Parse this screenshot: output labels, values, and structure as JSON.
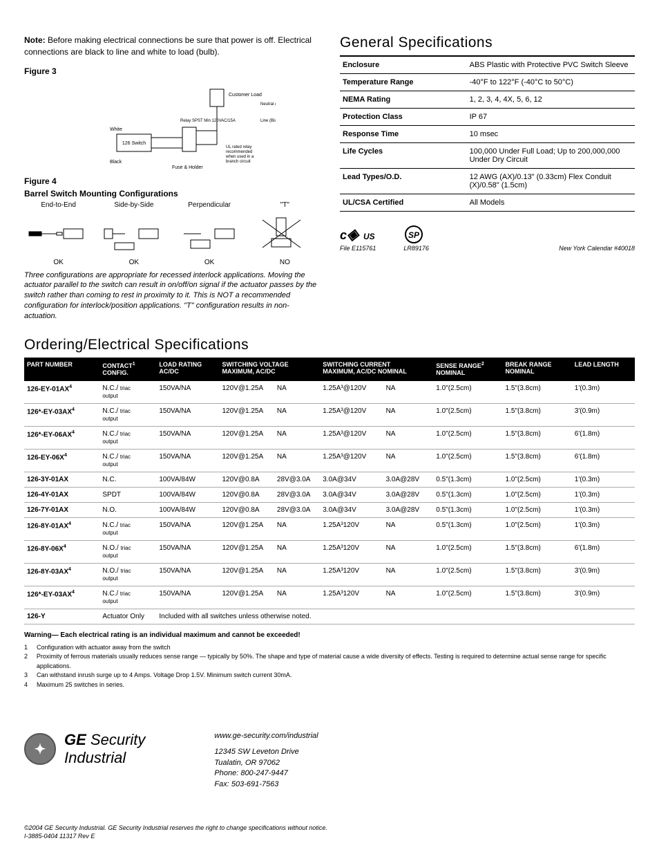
{
  "note_bold": "Note:",
  "note_text": " Before making electrical connections be sure that power is off. Electrical connections are black to line and white to load (bulb).",
  "fig3_label": "Figure 3",
  "fig3_labels": {
    "customer_load": "Customer Load",
    "neutral": "Neutral (White)",
    "line": "Line (Black)",
    "white": "White",
    "black": "Black",
    "switch": "126 Switch",
    "fuse": "Fuse & Holder",
    "relay": "Relay SPST Min 120VAC/15A",
    "ul_note": "UL rated relay recommended when used in a branch circuit"
  },
  "fig4_label": "Figure 4",
  "fig4_sub": "Barrel Switch Mounting Configurations",
  "fig4_cols": [
    "End-to-End",
    "Side-by-Side",
    "Perpendicular",
    "\"T\""
  ],
  "fig4_ok": [
    "OK",
    "OK",
    "OK",
    "NO"
  ],
  "fig4_caption": "Three configurations are appropriate for recessed interlock applications. Moving the actuator parallel to the switch can result in on/off/on signal if the actuator passes by the switch rather than coming to rest in proximity to it. This is NOT a recommended configuration for interlock/position applications. \"T\" configuration results in non-actuation.",
  "gen_spec_title": "General Specifications",
  "gen_spec_rows": [
    {
      "k": "Enclosure",
      "v": "ABS Plastic with Protective PVC Switch Sleeve"
    },
    {
      "k": "Temperature Range",
      "v": "-40°F to 122°F (-40°C to 50°C)"
    },
    {
      "k": "NEMA Rating",
      "v": "1, 2, 3, 4, 4X, 5, 6, 12"
    },
    {
      "k": "Protection Class",
      "v": "IP 67"
    },
    {
      "k": "Response Time",
      "v": "10 msec"
    },
    {
      "k": "Life Cycles",
      "v": "100,000 Under Full Load; Up to 200,000,000 Under Dry Circuit"
    },
    {
      "k": "Lead Types/O.D.",
      "v": "12 AWG (AX)/0.13\" (0.33cm) Flex Conduit (X)/0.58\" (1.5cm)"
    },
    {
      "k": "UL/CSA Certified",
      "v": "All Models"
    }
  ],
  "cert1_file": "File E115761",
  "cert2_file": "LR89176",
  "cert3": "New York Calendar #40018",
  "order_title": "Ordering/Electrical Specifications",
  "order_headers": [
    "PART NUMBER",
    "CONTACT¹ CONFIG.",
    "LOAD RATING AC/DC",
    "SWITCHING VOLTAGE MAXIMUM, AC/DC",
    "",
    "SWITCHING CURRENT MAXIMUM, AC/DC NOMINAL",
    "",
    "SENSE RANGE² NOMINAL",
    "BREAK RANGE NOMINAL",
    "LEAD LENGTH"
  ],
  "order_rows": [
    {
      "pn": "126-EY-01AX",
      "pns": "4",
      "c1": "N.C./",
      "c2": "triac output",
      "lr": "150VA/NA",
      "sv1": "120V@1.25A",
      "sv2": "NA",
      "sc1": "1.25A³@120V",
      "sc2": "NA",
      "sr": "1.0\"(2.5cm)",
      "br": "1.5\"(3.8cm)",
      "ll": "1'(0.3m)"
    },
    {
      "pn": "126*-EY-03AX",
      "pns": "4",
      "c1": "N.C./",
      "c2": "triac output",
      "lr": "150VA/NA",
      "sv1": "120V@1.25A",
      "sv2": "NA",
      "sc1": "1.25A³@120V",
      "sc2": "NA",
      "sr": "1.0\"(2.5cm)",
      "br": "1.5\"(3.8cm)",
      "ll": "3'(0.9m)"
    },
    {
      "pn": "126*-EY-06AX",
      "pns": "4",
      "c1": "N.C./",
      "c2": "triac output",
      "lr": "150VA/NA",
      "sv1": "120V@1.25A",
      "sv2": "NA",
      "sc1": "1.25A³@120V",
      "sc2": "NA",
      "sr": "1.0\"(2.5cm)",
      "br": "1.5\"(3.8cm)",
      "ll": "6'(1.8m)"
    },
    {
      "pn": "126-EY-06X",
      "pns": "4",
      "c1": "N.C./",
      "c2": "triac output",
      "lr": "150VA/NA",
      "sv1": "120V@1.25A",
      "sv2": "NA",
      "sc1": "1.25A³@120V",
      "sc2": "NA",
      "sr": "1.0\"(2.5cm)",
      "br": "1.5\"(3.8cm)",
      "ll": "6'(1.8m)"
    },
    {
      "pn": "126-3Y-01AX",
      "pns": "",
      "c1": "N.C.",
      "c2": "",
      "lr": "100VA/84W",
      "sv1": "120V@0.8A",
      "sv2": "28V@3.0A",
      "sc1": "3.0A@34V",
      "sc2": "3.0A@28V",
      "sr": "0.5\"(1.3cm)",
      "br": "1.0\"(2.5cm)",
      "ll": "1'(0.3m)"
    },
    {
      "pn": "126-4Y-01AX",
      "pns": "",
      "c1": "SPDT",
      "c2": "",
      "lr": "100VA/84W",
      "sv1": "120V@0.8A",
      "sv2": "28V@3.0A",
      "sc1": "3.0A@34V",
      "sc2": "3.0A@28V",
      "sr": "0.5\"(1.3cm)",
      "br": "1.0\"(2.5cm)",
      "ll": "1'(0.3m)"
    },
    {
      "pn": "126-7Y-01AX",
      "pns": "",
      "c1": "N.O.",
      "c2": "",
      "lr": "100VA/84W",
      "sv1": "120V@0.8A",
      "sv2": "28V@3.0A",
      "sc1": "3.0A@34V",
      "sc2": "3.0A@28V",
      "sr": "0.5\"(1.3cm)",
      "br": "1.0\"(2.5cm)",
      "ll": "1'(0.3m)"
    },
    {
      "pn": "126-8Y-01AX",
      "pns": "4",
      "c1": "N.C./",
      "c2": "triac output",
      "lr": "150VA/NA",
      "sv1": "120V@1.25A",
      "sv2": "NA",
      "sc1": "1.25A³120V",
      "sc2": "NA",
      "sr": "0.5\"(1.3cm)",
      "br": "1.0\"(2.5cm)",
      "ll": "1'(0.3m)"
    },
    {
      "pn": "126-8Y-06X",
      "pns": "4",
      "c1": "N.O./",
      "c2": "triac output",
      "lr": "150VA/NA",
      "sv1": "120V@1.25A",
      "sv2": "NA",
      "sc1": "1.25A³120V",
      "sc2": "NA",
      "sr": "1.0\"(2.5cm)",
      "br": "1.5\"(3.8cm)",
      "ll": "6'(1.8m)"
    },
    {
      "pn": "126-8Y-03AX",
      "pns": "4",
      "c1": "N.O./",
      "c2": "triac output",
      "lr": "150VA/NA",
      "sv1": "120V@1.25A",
      "sv2": "NA",
      "sc1": "1.25A³120V",
      "sc2": "NA",
      "sr": "1.0\"(2.5cm)",
      "br": "1.5\"(3.8cm)",
      "ll": "3'(0.9m)"
    },
    {
      "pn": "126*-EY-03AX",
      "pns": "4",
      "c1": "N.C./",
      "c2": "triac output",
      "lr": "150VA/NA",
      "sv1": "120V@1.25A",
      "sv2": "NA",
      "sc1": "1.25A³120V",
      "sc2": "NA",
      "sr": "1.0\"(2.5cm)",
      "br": "1.5\"(3.8cm)",
      "ll": "3'(0.9m)"
    }
  ],
  "order_last_pn": "126-Y",
  "order_last_c": "Actuator Only",
  "order_last_note": "Included with all switches unless otherwise noted.",
  "warning": "Warning— Each electrical rating is an individual maximum and cannot be exceeded!",
  "footnotes": [
    "Configuration with actuator away from the switch",
    "Proximity of ferrous materials usually reduces sense range — typically by 50%. The shape and type of material cause a wide diversity of effects. Testing is required to determine actual sense range for specific applications.",
    "Can withstand inrush surge up to 4 Amps. Voltage Drop 1.5V. Minimum switch current 30mA.",
    "Maximum 25 switches in series."
  ],
  "brand_l1a": "GE",
  "brand_l1b": "Security",
  "brand_l2": "Industrial",
  "url": "www.ge-security.com/industrial",
  "addr1": "12345 SW Leveton Drive",
  "addr2": "Tualatin, OR 97062",
  "addr3": "Phone: 800-247-9447",
  "addr4": "Fax: 503-691-7563",
  "copyright": "©2004 GE Security Industrial. GE Security Industrial reserves the right to change specifications without notice.",
  "docnum": "I-3885-0404 11317 Rev E"
}
